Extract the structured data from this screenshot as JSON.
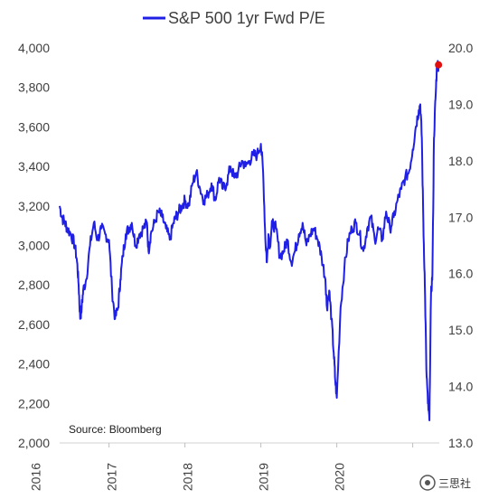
{
  "chart_data": {
    "type": "line",
    "title": "S&P 500 1yr Fwd P/E",
    "annotation": "Source: Bloomberg",
    "x_tick_labels": [
      "2016",
      "2017",
      "2018",
      "2019",
      "2020"
    ],
    "left_axis": {
      "range": [
        2000,
        4000
      ],
      "tick_labels": [
        "2,000",
        "2,200",
        "2,400",
        "2,600",
        "2,800",
        "3,000",
        "3,200",
        "3,400",
        "3,600",
        "3,800",
        "4,000"
      ]
    },
    "right_axis": {
      "range": [
        13.0,
        20.0
      ],
      "tick_labels": [
        "13.0",
        "14.0",
        "15.0",
        "16.0",
        "17.0",
        "18.0",
        "19.0",
        "20.0"
      ]
    },
    "x_range": [
      2015.35,
      2020.35
    ],
    "series": [
      {
        "name": "S&P 500 1yr Fwd P/E",
        "color": "#1f1fe6",
        "axis": "right",
        "x": [
          2015.35,
          2015.38,
          2015.42,
          2015.45,
          2015.5,
          2015.55,
          2015.58,
          2015.6,
          2015.62,
          2015.64,
          2015.66,
          2015.7,
          2015.75,
          2015.8,
          2015.85,
          2015.9,
          2015.95,
          2016.0,
          2016.04,
          2016.08,
          2016.12,
          2016.15,
          2016.18,
          2016.22,
          2016.26,
          2016.3,
          2016.35,
          2016.4,
          2016.45,
          2016.5,
          2016.52,
          2016.55,
          2016.6,
          2016.65,
          2016.7,
          2016.75,
          2016.8,
          2016.85,
          2016.88,
          2016.92,
          2016.96,
          2017.0,
          2017.05,
          2017.1,
          2017.15,
          2017.2,
          2017.25,
          2017.3,
          2017.35,
          2017.4,
          2017.45,
          2017.5,
          2017.55,
          2017.6,
          2017.65,
          2017.7,
          2017.75,
          2017.8,
          2017.85,
          2017.9,
          2017.95,
          2018.0,
          2018.03,
          2018.06,
          2018.08,
          2018.1,
          2018.12,
          2018.15,
          2018.2,
          2018.25,
          2018.3,
          2018.35,
          2018.4,
          2018.45,
          2018.5,
          2018.55,
          2018.6,
          2018.65,
          2018.7,
          2018.75,
          2018.8,
          2018.85,
          2018.87,
          2018.9,
          2018.93,
          2018.96,
          2018.98,
          2019.0,
          2019.05,
          2019.1,
          2019.15,
          2019.2,
          2019.25,
          2019.3,
          2019.35,
          2019.4,
          2019.45,
          2019.5,
          2019.55,
          2019.6,
          2019.65,
          2019.7,
          2019.75,
          2019.8,
          2019.85,
          2019.9,
          2019.95,
          2020.0,
          2020.04,
          2020.08,
          2020.1,
          2020.12,
          2020.14,
          2020.16,
          2020.18,
          2020.2,
          2020.22,
          2020.24,
          2020.26,
          2020.28,
          2020.3,
          2020.32,
          2020.34
        ],
        "values": [
          17.2,
          17.0,
          16.9,
          16.8,
          16.7,
          16.5,
          16.2,
          15.8,
          15.2,
          15.4,
          15.7,
          15.9,
          16.5,
          16.9,
          16.6,
          16.8,
          16.7,
          16.6,
          15.7,
          15.2,
          15.4,
          15.9,
          16.3,
          16.7,
          16.8,
          16.9,
          16.5,
          16.7,
          16.8,
          16.9,
          16.4,
          16.7,
          16.9,
          17.1,
          17.0,
          16.8,
          16.6,
          16.9,
          17.0,
          17.1,
          17.2,
          17.3,
          17.2,
          17.6,
          17.8,
          17.5,
          17.3,
          17.4,
          17.6,
          17.3,
          17.7,
          17.5,
          17.6,
          17.9,
          17.7,
          17.8,
          18.0,
          17.9,
          18.0,
          18.1,
          18.1,
          18.3,
          17.8,
          16.6,
          16.2,
          16.7,
          16.5,
          16.9,
          16.8,
          16.3,
          16.4,
          16.6,
          16.2,
          16.4,
          16.7,
          16.9,
          16.5,
          16.7,
          16.8,
          16.6,
          16.3,
          15.9,
          15.4,
          15.7,
          15.2,
          14.6,
          14.1,
          13.8,
          15.4,
          16.1,
          16.6,
          16.8,
          16.9,
          16.7,
          16.4,
          16.8,
          17.0,
          16.6,
          16.8,
          16.6,
          17.1,
          16.8,
          17.0,
          17.3,
          17.5,
          17.7,
          17.8,
          18.2,
          18.6,
          18.9,
          19.0,
          18.4,
          16.9,
          15.8,
          14.3,
          13.7,
          13.4,
          15.6,
          16.0,
          18.4,
          19.1,
          19.7,
          19.7
        ]
      }
    ]
  },
  "watermark": {
    "text": "三思社"
  }
}
